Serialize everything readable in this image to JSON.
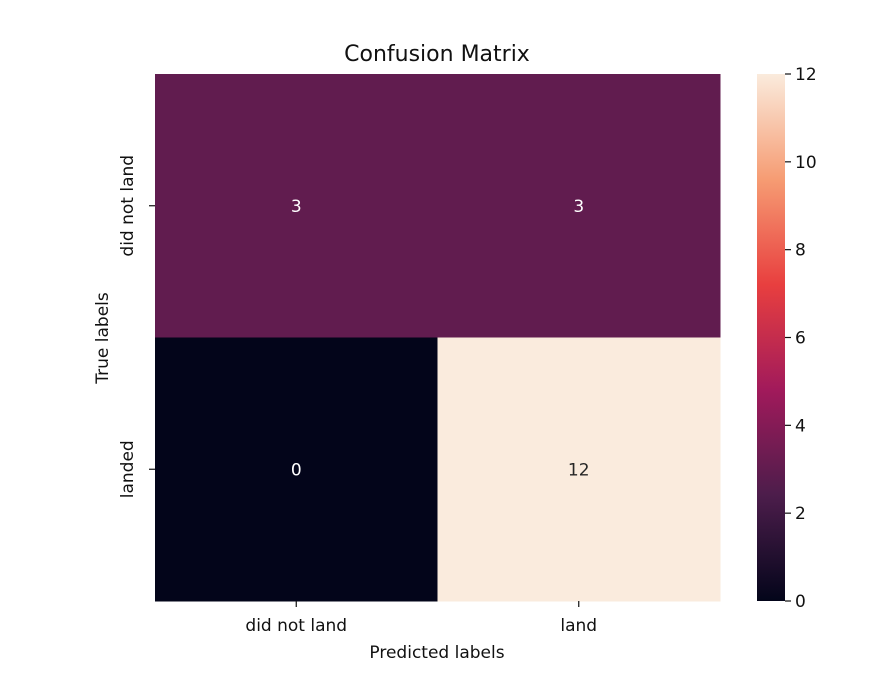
{
  "chart_data": {
    "type": "heatmap",
    "title": "Confusion Matrix",
    "xlabel": "Predicted labels",
    "ylabel": "True labels",
    "x_categories": [
      "did not land",
      "land"
    ],
    "y_categories": [
      "did not land",
      "landed"
    ],
    "values": [
      [
        3,
        3
      ],
      [
        0,
        12
      ]
    ],
    "colorbar": {
      "range": [
        0,
        12
      ],
      "ticks": [
        0,
        2,
        4,
        6,
        8,
        10,
        12
      ],
      "colormap": "rocket",
      "colors": [
        "#03051a",
        "#4c1d4b",
        "#a11a5b",
        "#e83f3f",
        "#f69c73",
        "#faebdd"
      ]
    },
    "annotations": true
  }
}
